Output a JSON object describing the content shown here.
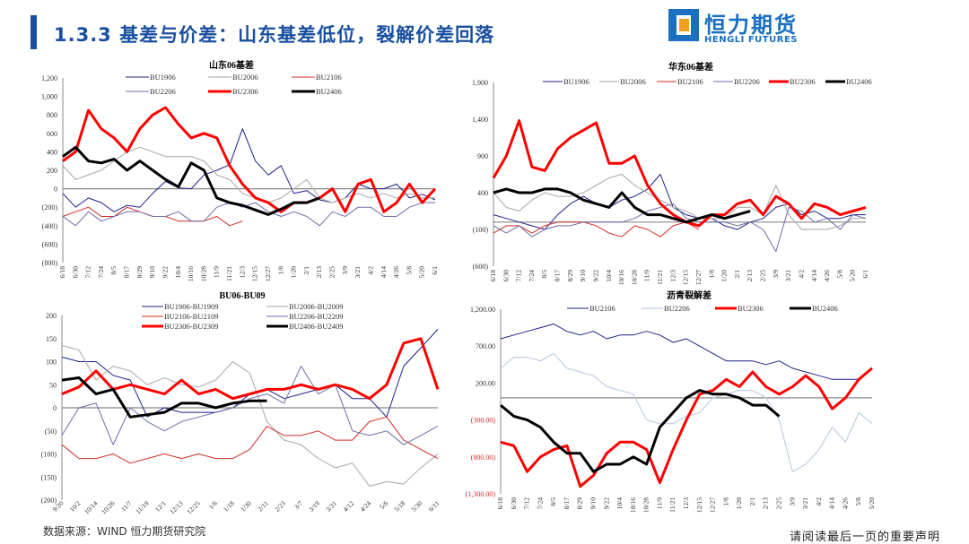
{
  "header": {
    "title": "1.3.3 基差与价差：山东基差低位，裂解价差回落",
    "logo_cn": "恒力期货",
    "logo_en": "HENGLI FUTURES"
  },
  "footer": {
    "source": "数据来源：WIND 恒力期货研究院",
    "disclaimer": "请阅读最后一页的重要声明"
  },
  "chart_data": [
    {
      "type": "line",
      "title": "山东06基差",
      "ylim": [
        -800,
        1200
      ],
      "yticks": [
        1200,
        1000,
        800,
        600,
        400,
        200,
        0,
        -200,
        -400,
        -600,
        -800
      ],
      "ytick_labels": [
        "1,200",
        "1,000",
        "800",
        "600",
        "400",
        "200",
        "0",
        "(200)",
        "(400)",
        "(600)",
        "(800)"
      ],
      "categories": [
        "6/18",
        "6/30",
        "7/12",
        "7/24",
        "8/5",
        "8/17",
        "8/29",
        "9/10",
        "9/22",
        "10/4",
        "10/16",
        "10/28",
        "11/9",
        "11/21",
        "12/3",
        "12/15",
        "12/27",
        "1/8",
        "1/20",
        "2/1",
        "2/13",
        "2/25",
        "3/9",
        "3/21",
        "4/2",
        "4/14",
        "4/26",
        "5/8",
        "5/20",
        "6/1"
      ],
      "legend": "top",
      "series": [
        {
          "name": "BU1906",
          "color": "#1f1f8a",
          "values": [
            -50,
            -200,
            -100,
            -150,
            -250,
            -180,
            -200,
            -50,
            80,
            10,
            0,
            150,
            200,
            260,
            650,
            300,
            150,
            250,
            -50,
            -20,
            -120,
            -150,
            -100,
            50,
            0,
            0,
            50,
            -100,
            -60,
            -120
          ]
        },
        {
          "name": "BU2006",
          "color": "#b4b4b4",
          "values": [
            250,
            100,
            150,
            200,
            300,
            400,
            450,
            400,
            350,
            350,
            350,
            300,
            150,
            100,
            -50,
            -100,
            -150,
            -100,
            0,
            100,
            -100,
            -150,
            -100,
            -50,
            -100,
            -50,
            -100,
            -50,
            -100,
            -100
          ]
        },
        {
          "name": "BU2106",
          "color": "#d42a2a",
          "values": [
            -300,
            -250,
            -200,
            -300,
            -300,
            -200,
            -250,
            -300,
            -300,
            -350,
            -350,
            -350,
            -300,
            -400,
            -350,
            null,
            null,
            null,
            null,
            null,
            null,
            null,
            null,
            null,
            null,
            null,
            null,
            null,
            null,
            null
          ]
        },
        {
          "name": "BU2206",
          "color": "#6e6ea8",
          "values": [
            -300,
            -400,
            -250,
            -350,
            -300,
            -250,
            -250,
            -300,
            -300,
            -250,
            -350,
            -350,
            -200,
            -150,
            -200,
            -150,
            -250,
            -300,
            -250,
            -300,
            -400,
            -250,
            -300,
            -200,
            -200,
            -300,
            -300,
            -200,
            -150,
            -150
          ]
        },
        {
          "name": "BU2306",
          "color": "#ff0000",
          "values": [
            300,
            400,
            850,
            650,
            550,
            400,
            650,
            800,
            880,
            700,
            550,
            600,
            550,
            250,
            50,
            -100,
            -150,
            -250,
            -150,
            -150,
            -100,
            0,
            -250,
            50,
            100,
            -250,
            -150,
            50,
            -150,
            0
          ]
        },
        {
          "name": "BU2406",
          "color": "#000000",
          "values": [
            350,
            450,
            300,
            280,
            320,
            200,
            300,
            200,
            100,
            20,
            280,
            200,
            -100,
            -150,
            -180,
            -230,
            -280,
            -220,
            -150,
            -150,
            -100,
            null,
            null,
            null,
            null,
            null,
            null,
            null,
            null,
            null
          ]
        }
      ]
    },
    {
      "type": "line",
      "title": "华东06基差",
      "ylim": [
        -600,
        1900
      ],
      "yticks": [
        1900,
        1400,
        900,
        400,
        -100,
        -600
      ],
      "ytick_labels": [
        "1,900",
        "1,400",
        "900",
        "400",
        "(100)",
        "(600)"
      ],
      "categories": [
        "6/18",
        "6/30",
        "7/12",
        "7/24",
        "8/5",
        "8/17",
        "8/29",
        "9/10",
        "9/22",
        "10/4",
        "10/16",
        "10/28",
        "11/9",
        "11/21",
        "12/3",
        "12/15",
        "12/27",
        "1/8",
        "1/20",
        "2/1",
        "2/13",
        "2/25",
        "3/9",
        "3/21",
        "4/2",
        "4/14",
        "4/26",
        "5/8",
        "5/20",
        "6/1"
      ],
      "legend": "top",
      "series": [
        {
          "name": "BU1906",
          "color": "#1f1f8a",
          "values": [
            100,
            50,
            0,
            -50,
            -100,
            100,
            250,
            350,
            250,
            200,
            300,
            350,
            450,
            650,
            200,
            100,
            50,
            50,
            -50,
            -100,
            0,
            50,
            200,
            250,
            100,
            150,
            50,
            50,
            100,
            100
          ]
        },
        {
          "name": "BU2006",
          "color": "#b4b4b4",
          "values": [
            400,
            200,
            150,
            300,
            400,
            350,
            350,
            400,
            500,
            600,
            650,
            500,
            400,
            300,
            200,
            150,
            50,
            50,
            50,
            200,
            200,
            100,
            500,
            100,
            -100,
            -100,
            -100,
            -50,
            50,
            50
          ]
        },
        {
          "name": "BU2106",
          "color": "#d42a2a",
          "values": [
            -150,
            -50,
            -50,
            -150,
            -50,
            0,
            0,
            0,
            -50,
            -150,
            -200,
            -50,
            -100,
            -200,
            -50,
            0,
            -100,
            null,
            null,
            null,
            null,
            null,
            null,
            null,
            null,
            null,
            null,
            null,
            null,
            null
          ]
        },
        {
          "name": "BU2206",
          "color": "#6e6ea8",
          "values": [
            -50,
            -150,
            -50,
            -200,
            -100,
            -50,
            -50,
            0,
            0,
            0,
            0,
            50,
            150,
            200,
            250,
            50,
            0,
            0,
            0,
            -50,
            0,
            -100,
            -400,
            200,
            150,
            0,
            50,
            -100,
            100,
            50
          ]
        },
        {
          "name": "BU2306",
          "color": "#ff0000",
          "values": [
            600,
            900,
            1380,
            750,
            700,
            1000,
            1150,
            1250,
            1350,
            800,
            800,
            900,
            500,
            250,
            100,
            0,
            -50,
            100,
            100,
            250,
            300,
            100,
            350,
            250,
            50,
            250,
            200,
            100,
            150,
            200
          ]
        },
        {
          "name": "BU2406",
          "color": "#000000",
          "values": [
            400,
            450,
            400,
            400,
            450,
            450,
            400,
            300,
            250,
            200,
            400,
            200,
            100,
            100,
            50,
            0,
            50,
            100,
            50,
            100,
            150,
            null,
            null,
            null,
            null,
            null,
            null,
            null,
            null,
            null
          ]
        }
      ]
    },
    {
      "type": "line",
      "title": "BU06-BU09",
      "ylim": [
        -200,
        200
      ],
      "yticks": [
        200,
        150,
        100,
        50,
        0,
        -50,
        -100,
        -150,
        -200
      ],
      "ytick_labels": [
        "200",
        "150",
        "100",
        "50",
        "0",
        "(50)",
        "(100)",
        "(150)",
        "(200)"
      ],
      "categories": [
        "9/20",
        "10/2",
        "10/14",
        "10/26",
        "11/7",
        "11/19",
        "12/1",
        "12/13",
        "12/25",
        "1/6",
        "1/18",
        "1/30",
        "2/11",
        "2/23",
        "3/7",
        "3/19",
        "3/31",
        "4/12",
        "4/24",
        "5/6",
        "5/18",
        "5/30",
        "6/11"
      ],
      "legend": "top",
      "series": [
        {
          "name": "BU1906-BU1909",
          "color": "#1f1f8a",
          "values": [
            110,
            100,
            100,
            70,
            60,
            -20,
            0,
            -10,
            -10,
            -10,
            0,
            30,
            40,
            20,
            30,
            40,
            50,
            20,
            20,
            -20,
            90,
            130,
            170
          ]
        },
        {
          "name": "BU2006-BU2009",
          "color": "#b4b4b4",
          "values": [
            135,
            125,
            60,
            90,
            80,
            50,
            65,
            50,
            45,
            60,
            100,
            75,
            -30,
            -70,
            -80,
            -110,
            -130,
            -120,
            -170,
            -160,
            -165,
            -130,
            -100
          ]
        },
        {
          "name": "BU2106-BU2109",
          "color": "#d42a2a",
          "values": [
            -80,
            -110,
            -110,
            -100,
            -120,
            -110,
            -100,
            -110,
            -100,
            -110,
            -110,
            -90,
            -40,
            -60,
            -60,
            -50,
            -70,
            -70,
            -30,
            -20,
            -70,
            -90,
            -110
          ]
        },
        {
          "name": "BU2206-BU2209",
          "color": "#6e6ea8",
          "values": [
            -60,
            0,
            10,
            -80,
            0,
            -30,
            -50,
            -30,
            -20,
            -10,
            0,
            20,
            30,
            10,
            90,
            30,
            50,
            -50,
            -60,
            -50,
            -80,
            -60,
            -40
          ]
        },
        {
          "name": "BU2306-BU2309",
          "color": "#ff0000",
          "values": [
            30,
            45,
            80,
            40,
            50,
            40,
            30,
            60,
            30,
            40,
            20,
            30,
            40,
            40,
            50,
            40,
            50,
            40,
            20,
            50,
            140,
            150,
            40
          ]
        },
        {
          "name": "BU2406-BU2409",
          "color": "#000000",
          "values": [
            60,
            65,
            30,
            40,
            -20,
            -15,
            -10,
            10,
            10,
            0,
            10,
            15,
            15,
            null,
            null,
            null,
            null,
            null,
            null,
            null,
            null,
            null,
            null
          ]
        }
      ]
    },
    {
      "type": "line",
      "title": "沥青裂解差",
      "ylim": [
        -1300,
        1200
      ],
      "yticks": [
        1200,
        700,
        200,
        -300,
        -800,
        -1300
      ],
      "ytick_labels": [
        "1,200.00",
        "700.00",
        "200.00",
        "(300.00)",
        "(800.00)",
        "(1,300.00)"
      ],
      "negative_label_color": "#d42a2a",
      "categories": [
        "6/18",
        "6/30",
        "7/12",
        "7/24",
        "8/5",
        "8/17",
        "8/29",
        "9/10",
        "9/22",
        "10/4",
        "10/16",
        "10/28",
        "11/9",
        "11/21",
        "12/3",
        "12/15",
        "12/27",
        "1/8",
        "1/20",
        "2/1",
        "2/13",
        "2/25",
        "3/9",
        "3/21",
        "4/2",
        "4/14",
        "4/26",
        "5/8",
        "5/20"
      ],
      "legend": "top",
      "series": [
        {
          "name": "BU2106",
          "color": "#1f1f8a",
          "values": [
            800,
            850,
            900,
            950,
            1000,
            900,
            850,
            900,
            800,
            850,
            850,
            900,
            850,
            750,
            800,
            700,
            600,
            500,
            500,
            500,
            450,
            500,
            400,
            350,
            300,
            250,
            250,
            250,
            400
          ]
        },
        {
          "name": "BU2206",
          "color": "#c2cde0",
          "values": [
            400,
            550,
            550,
            500,
            600,
            400,
            350,
            300,
            150,
            100,
            50,
            -300,
            -350,
            -350,
            -250,
            -200,
            0,
            50,
            100,
            100,
            0,
            -300,
            -1000,
            -900,
            -700,
            -400,
            -600,
            -200,
            -350
          ]
        },
        {
          "name": "BU2306",
          "color": "#ff0000",
          "values": [
            -600,
            -650,
            -1000,
            -800,
            -700,
            -650,
            -1200,
            -1050,
            -750,
            -600,
            -600,
            -700,
            -1150,
            -700,
            -300,
            50,
            100,
            250,
            150,
            350,
            150,
            50,
            150,
            300,
            150,
            -150,
            0,
            250,
            400
          ]
        },
        {
          "name": "BU2406",
          "color": "#000000",
          "values": [
            -100,
            -250,
            -300,
            -400,
            -600,
            -750,
            -750,
            -1000,
            -900,
            -900,
            -800,
            -900,
            -400,
            -200,
            0,
            100,
            50,
            50,
            0,
            -100,
            -100,
            -250,
            null,
            null,
            null,
            null,
            null,
            null,
            null
          ]
        }
      ]
    }
  ]
}
